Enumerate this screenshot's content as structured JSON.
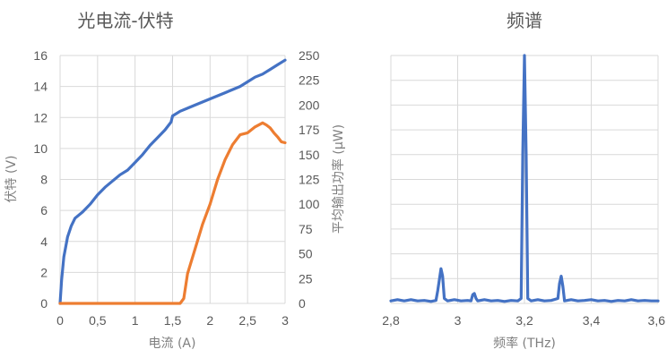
{
  "chart_data": [
    {
      "type": "line",
      "title": "光电流-伏特",
      "xlabel": "电流 (A)",
      "ylabel": "伏特 (V)",
      "y2label": "平均输出功率 (μW)",
      "xlim": [
        0,
        3
      ],
      "ylim": [
        0,
        16
      ],
      "y2lim": [
        0,
        250
      ],
      "x_ticks": [
        "0",
        "0,5",
        "1",
        "1,5",
        "2",
        "2,5",
        "3"
      ],
      "y_ticks": [
        "0",
        "2",
        "4",
        "6",
        "8",
        "10",
        "12",
        "14",
        "16"
      ],
      "y2_ticks": [
        "0",
        "25",
        "50",
        "75",
        "100",
        "125",
        "150",
        "175",
        "200",
        "225",
        "250"
      ],
      "grid": true,
      "series": [
        {
          "axis": "left",
          "color": "#4472c4",
          "points": [
            [
              0,
              0
            ],
            [
              0.02,
              1.5
            ],
            [
              0.05,
              3.0
            ],
            [
              0.1,
              4.3
            ],
            [
              0.15,
              5.0
            ],
            [
              0.2,
              5.5
            ],
            [
              0.3,
              5.9
            ],
            [
              0.4,
              6.4
            ],
            [
              0.5,
              7.0
            ],
            [
              0.6,
              7.5
            ],
            [
              0.7,
              7.9
            ],
            [
              0.8,
              8.3
            ],
            [
              0.9,
              8.6
            ],
            [
              1.0,
              9.1
            ],
            [
              1.1,
              9.6
            ],
            [
              1.2,
              10.2
            ],
            [
              1.3,
              10.7
            ],
            [
              1.4,
              11.2
            ],
            [
              1.48,
              11.7
            ],
            [
              1.5,
              12.1
            ],
            [
              1.6,
              12.4
            ],
            [
              1.7,
              12.6
            ],
            [
              1.8,
              12.8
            ],
            [
              2.0,
              13.2
            ],
            [
              2.2,
              13.6
            ],
            [
              2.4,
              14.0
            ],
            [
              2.5,
              14.3
            ],
            [
              2.6,
              14.6
            ],
            [
              2.7,
              14.8
            ],
            [
              2.8,
              15.1
            ],
            [
              2.9,
              15.4
            ],
            [
              3.0,
              15.7
            ]
          ]
        },
        {
          "axis": "right",
          "color": "#ed7d31",
          "points": [
            [
              0,
              0
            ],
            [
              0.5,
              0
            ],
            [
              1.0,
              0
            ],
            [
              1.5,
              0
            ],
            [
              1.6,
              0
            ],
            [
              1.65,
              5
            ],
            [
              1.7,
              30
            ],
            [
              1.8,
              55
            ],
            [
              1.9,
              80
            ],
            [
              2.0,
              100
            ],
            [
              2.1,
              125
            ],
            [
              2.2,
              145
            ],
            [
              2.3,
              160
            ],
            [
              2.4,
              170
            ],
            [
              2.5,
              172
            ],
            [
              2.6,
              178
            ],
            [
              2.7,
              182
            ],
            [
              2.75,
              180
            ],
            [
              2.8,
              177
            ],
            [
              2.85,
              172
            ],
            [
              2.9,
              168
            ],
            [
              2.95,
              163
            ],
            [
              3.0,
              162
            ]
          ]
        }
      ]
    },
    {
      "type": "line",
      "title": "频谱",
      "xlabel": "频率 (THz)",
      "ylabel": "",
      "xlim": [
        2.8,
        3.6
      ],
      "ylim": [
        0,
        1
      ],
      "x_ticks": [
        "2,8",
        "3",
        "3,2",
        "3,4",
        "3,6"
      ],
      "grid": true,
      "series": [
        {
          "color": "#4472c4",
          "points": [
            [
              2.8,
              0.01
            ],
            [
              2.82,
              0.015
            ],
            [
              2.84,
              0.01
            ],
            [
              2.86,
              0.015
            ],
            [
              2.88,
              0.01
            ],
            [
              2.9,
              0.012
            ],
            [
              2.92,
              0.008
            ],
            [
              2.935,
              0.012
            ],
            [
              2.94,
              0.05
            ],
            [
              2.95,
              0.14
            ],
            [
              2.955,
              0.11
            ],
            [
              2.96,
              0.02
            ],
            [
              2.97,
              0.01
            ],
            [
              2.99,
              0.015
            ],
            [
              3.01,
              0.01
            ],
            [
              3.03,
              0.012
            ],
            [
              3.04,
              0.01
            ],
            [
              3.045,
              0.035
            ],
            [
              3.05,
              0.04
            ],
            [
              3.055,
              0.02
            ],
            [
              3.06,
              0.01
            ],
            [
              3.08,
              0.015
            ],
            [
              3.1,
              0.01
            ],
            [
              3.12,
              0.012
            ],
            [
              3.14,
              0.008
            ],
            [
              3.16,
              0.012
            ],
            [
              3.18,
              0.01
            ],
            [
              3.19,
              0.02
            ],
            [
              3.195,
              0.6
            ],
            [
              3.2,
              1.0
            ],
            [
              3.205,
              0.6
            ],
            [
              3.21,
              0.02
            ],
            [
              3.22,
              0.01
            ],
            [
              3.24,
              0.015
            ],
            [
              3.26,
              0.01
            ],
            [
              3.28,
              0.012
            ],
            [
              3.3,
              0.02
            ],
            [
              3.305,
              0.08
            ],
            [
              3.31,
              0.11
            ],
            [
              3.315,
              0.07
            ],
            [
              3.32,
              0.01
            ],
            [
              3.34,
              0.015
            ],
            [
              3.36,
              0.01
            ],
            [
              3.38,
              0.012
            ],
            [
              3.4,
              0.015
            ],
            [
              3.42,
              0.01
            ],
            [
              3.44,
              0.012
            ],
            [
              3.46,
              0.008
            ],
            [
              3.48,
              0.012
            ],
            [
              3.5,
              0.01
            ],
            [
              3.52,
              0.015
            ],
            [
              3.54,
              0.01
            ],
            [
              3.56,
              0.012
            ],
            [
              3.58,
              0.01
            ],
            [
              3.6,
              0.01
            ]
          ]
        }
      ]
    }
  ]
}
